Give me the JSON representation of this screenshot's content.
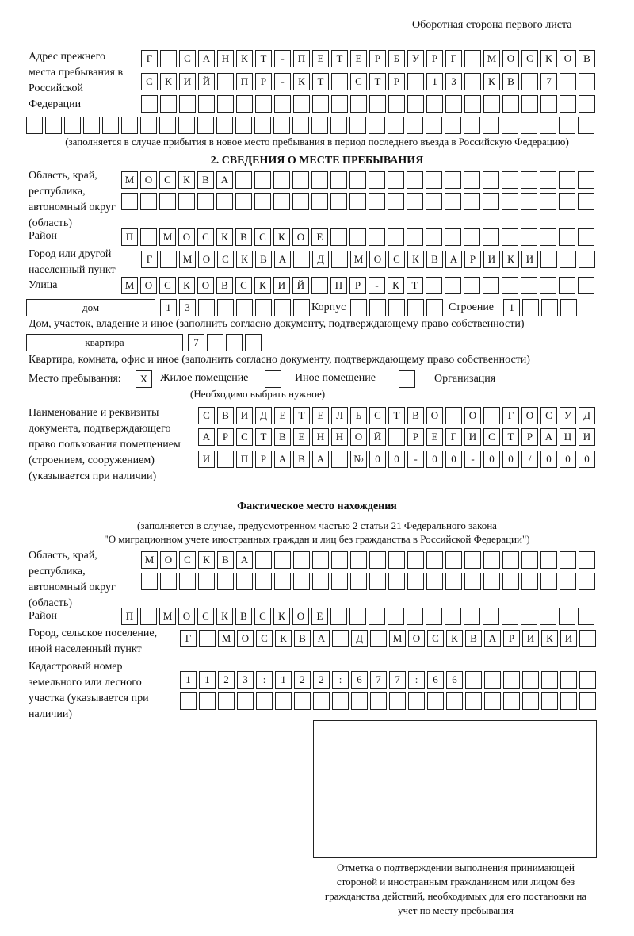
{
  "header": {
    "page_label": "Оборотная сторона первого листа"
  },
  "previous_address": {
    "label": "Адрес прежнего места пребывания в Российской Федерации",
    "rows": [
      [
        "Г",
        "",
        "С",
        "А",
        "Н",
        "К",
        "Т",
        "-",
        "П",
        "Е",
        "Т",
        "Е",
        "Р",
        "Б",
        "У",
        "Р",
        "Г",
        "",
        "М",
        "О",
        "С",
        "К",
        "О",
        "В"
      ],
      [
        "С",
        "К",
        "И",
        "Й",
        "",
        "П",
        "Р",
        "-",
        "К",
        "Т",
        "",
        "С",
        "Т",
        "Р",
        "",
        "1",
        "3",
        "",
        "К",
        "В",
        "",
        "7",
        "",
        ""
      ],
      [
        "",
        "",
        "",
        "",
        "",
        "",
        "",
        "",
        "",
        "",
        "",
        "",
        "",
        "",
        "",
        "",
        "",
        "",
        "",
        "",
        "",
        "",
        "",
        ""
      ],
      [
        "",
        "",
        "",
        "",
        "",
        "",
        "",
        "",
        "",
        "",
        "",
        "",
        "",
        "",
        "",
        "",
        "",
        "",
        "",
        "",
        "",
        "",
        "",
        "",
        "",
        "",
        "",
        "",
        "",
        ""
      ]
    ],
    "note": "(заполняется в случае прибытия в новое место пребывания в период последнего въезда в Российскую Федерацию)"
  },
  "section2": {
    "title": "2. СВЕДЕНИЯ О МЕСТЕ ПРЕБЫВАНИЯ",
    "region_label": "Область, край, республика, автономный округ (область)",
    "region_rows": [
      [
        "М",
        "О",
        "С",
        "К",
        "В",
        "А",
        "",
        "",
        "",
        "",
        "",
        "",
        "",
        "",
        "",
        "",
        "",
        "",
        "",
        "",
        "",
        "",
        "",
        "",
        ""
      ],
      [
        "",
        "",
        "",
        "",
        "",
        "",
        "",
        "",
        "",
        "",
        "",
        "",
        "",
        "",
        "",
        "",
        "",
        "",
        "",
        "",
        "",
        "",
        "",
        "",
        ""
      ]
    ],
    "district_label": "Район",
    "district": [
      "П",
      "",
      "М",
      "О",
      "С",
      "К",
      "В",
      "С",
      "К",
      "О",
      "Е",
      "",
      "",
      "",
      "",
      "",
      "",
      "",
      "",
      "",
      "",
      "",
      "",
      "",
      ""
    ],
    "city_label": "Город или другой населенный пункт",
    "city": [
      "Г",
      "",
      "М",
      "О",
      "С",
      "К",
      "В",
      "А",
      "",
      "Д",
      "",
      "М",
      "О",
      "С",
      "К",
      "В",
      "А",
      "Р",
      "И",
      "К",
      "И",
      "",
      "",
      ""
    ],
    "street_label": "Улица",
    "street": [
      "М",
      "О",
      "С",
      "К",
      "О",
      "В",
      "С",
      "К",
      "И",
      "Й",
      "",
      "П",
      "Р",
      "-",
      "К",
      "Т",
      "",
      "",
      "",
      "",
      "",
      "",
      "",
      "",
      ""
    ],
    "house_type": "дом",
    "house": [
      "1",
      "3",
      "",
      "",
      "",
      "",
      "",
      ""
    ],
    "korpus_label": "Корпус",
    "korpus": [
      "",
      "",
      "",
      "",
      ""
    ],
    "building_label": "Строение",
    "building": [
      "1",
      "",
      "",
      ""
    ],
    "house_note": "Дом, участок, владение и иное (заполнить согласно документу, подтверждающему право собственности)",
    "apartment_type": "квартира",
    "apartment": [
      "7",
      "",
      "",
      ""
    ],
    "apartment_note": "Квартира, комната, офис и иное (заполнить согласно документу, подтверждающему право собственности)",
    "place_label": "Место пребывания:",
    "place_options": [
      {
        "label": "Жилое помещение",
        "mark": "X"
      },
      {
        "label": "Иное помещение",
        "mark": ""
      },
      {
        "label": "Организация",
        "mark": ""
      }
    ],
    "place_note": "(Необходимо выбрать нужное)",
    "document_label": "Наименование и реквизиты документа, подтверждающего право пользования помещением (строением, сооружением) (указывается при наличии)",
    "document_rows": [
      [
        "С",
        "В",
        "И",
        "Д",
        "Е",
        "Т",
        "Е",
        "Л",
        "Ь",
        "С",
        "Т",
        "В",
        "О",
        "",
        "О",
        "",
        "Г",
        "О",
        "С",
        "У",
        "Д"
      ],
      [
        "А",
        "Р",
        "С",
        "Т",
        "В",
        "Е",
        "Н",
        "Н",
        "О",
        "Й",
        "",
        "Р",
        "Е",
        "Г",
        "И",
        "С",
        "Т",
        "Р",
        "А",
        "Ц",
        "И"
      ],
      [
        "И",
        "",
        "П",
        "Р",
        "А",
        "В",
        "А",
        "",
        "№",
        "0",
        "0",
        "-",
        "0",
        "0",
        "-",
        "0",
        "0",
        "/",
        "0",
        "0",
        "0"
      ]
    ]
  },
  "actual_location": {
    "title": "Фактическое место нахождения",
    "note_line1": "(заполняется в случае, предусмотренном частью 2 статьи 21 Федерального закона",
    "note_line2": "\"О миграционном учете иностранных граждан и лиц без гражданства в Российской Федерации\")",
    "region_label": "Область, край, республика, автономный округ (область)",
    "region_rows": [
      [
        "М",
        "О",
        "С",
        "К",
        "В",
        "А",
        "",
        "",
        "",
        "",
        "",
        "",
        "",
        "",
        "",
        "",
        "",
        "",
        "",
        "",
        "",
        "",
        "",
        ""
      ],
      [
        "",
        "",
        "",
        "",
        "",
        "",
        "",
        "",
        "",
        "",
        "",
        "",
        "",
        "",
        "",
        "",
        "",
        "",
        "",
        "",
        "",
        "",
        "",
        ""
      ]
    ],
    "district_label": "Район",
    "district": [
      "П",
      "",
      "М",
      "О",
      "С",
      "К",
      "В",
      "С",
      "К",
      "О",
      "Е",
      "",
      "",
      "",
      "",
      "",
      "",
      "",
      "",
      "",
      "",
      "",
      "",
      "",
      ""
    ],
    "city_label": "Город, сельское поселение, иной населенный пункт",
    "city": [
      "Г",
      "",
      "М",
      "О",
      "С",
      "К",
      "В",
      "А",
      "",
      "Д",
      "",
      "М",
      "О",
      "С",
      "К",
      "В",
      "А",
      "Р",
      "И",
      "К",
      "И",
      ""
    ],
    "cadastral_label": "Кадастровый номер земельного или лесного участка (указывается при наличии)",
    "cadastral_rows": [
      [
        "1",
        "1",
        "2",
        "3",
        ":",
        "1",
        "2",
        "2",
        ":",
        "6",
        "7",
        "7",
        ":",
        "6",
        "6",
        "",
        "",
        "",
        "",
        "",
        "",
        ""
      ],
      [
        "",
        "",
        "",
        "",
        "",
        "",
        "",
        "",
        "",
        "",
        "",
        "",
        "",
        "",
        "",
        "",
        "",
        "",
        "",
        "",
        "",
        ""
      ]
    ]
  },
  "stamp_box": {
    "caption": "Отметка о подтверждении выполнения принимающей стороной и иностранным гражданином или лицом без гражданства действий, необходимых для его постановки на учет по месту пребывания"
  }
}
